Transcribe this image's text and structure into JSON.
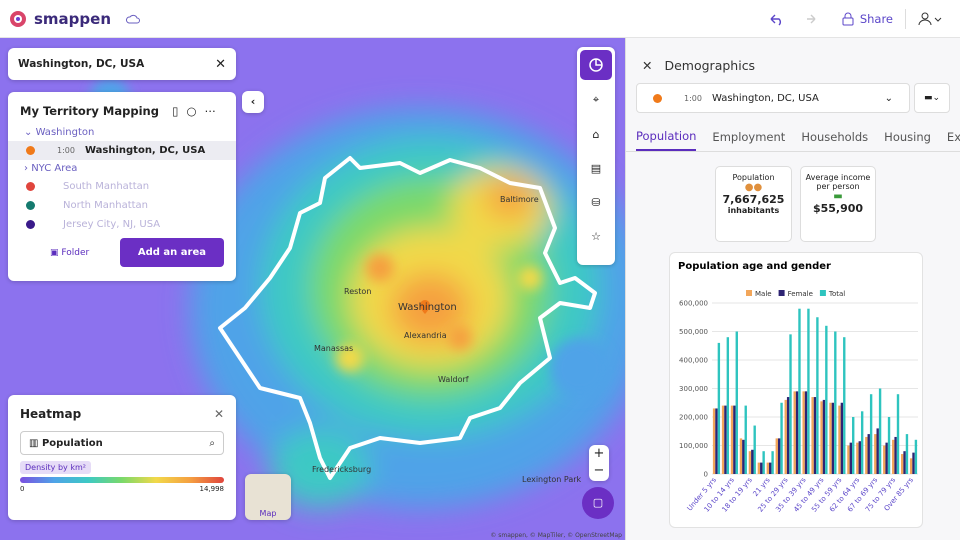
{
  "header": {
    "brand": "smappen",
    "share": "Share"
  },
  "search": {
    "query": "Washington, DC, USA"
  },
  "territory": {
    "title": "My Territory Mapping",
    "groups": [
      {
        "name": "Washington",
        "areas": [
          {
            "time": "1:00",
            "name": "Washington, DC, USA"
          }
        ]
      },
      {
        "name": "NYC Area",
        "areas": [
          {
            "name": "South Manhattan"
          },
          {
            "name": "North Manhattan"
          },
          {
            "name": "Jersey City, NJ, USA"
          }
        ]
      }
    ],
    "folder": "Folder",
    "add": "Add an area"
  },
  "heatmap": {
    "title": "Heatmap",
    "layer": "Population",
    "legend": "Density by km²",
    "min": "0",
    "max": "14,998"
  },
  "map": {
    "labels": [
      "Washington",
      "Baltimore",
      "Alexandria",
      "Reston",
      "Manassas",
      "Waldorf",
      "Fredericksburg",
      "Lexington Park"
    ],
    "toggle": "Map",
    "attribution": "© smappen, © MapTiler, © OpenStreetMap"
  },
  "demographics": {
    "title": "Demographics",
    "area_time": "1:00",
    "area": "Washington, DC, USA",
    "tabs": [
      "Population",
      "Employment",
      "Households",
      "Housing",
      "Export"
    ],
    "cards": [
      {
        "label": "Population",
        "value": "7,667,625",
        "unit": "inhabitants"
      },
      {
        "label": "Average income per person",
        "value": "$55,900"
      }
    ]
  },
  "chart_data": {
    "type": "bar",
    "title": "Population age and gender",
    "categories": [
      "Under 5 yrs",
      null,
      "10 to 14 yrs",
      null,
      "18 to 19 yrs",
      null,
      "21 yrs",
      null,
      "25 to 29 yrs",
      null,
      "35 to 39 yrs",
      null,
      "45 to 49 yrs",
      null,
      "55 to 59 yrs",
      null,
      "62 to 64 yrs",
      null,
      "67 to 69 yrs",
      null,
      "75 to 79 yrs",
      null,
      "Over 85 yrs"
    ],
    "series": [
      {
        "name": "Male",
        "color": "#f2a65a",
        "values": [
          230000,
          240000,
          240000,
          125000,
          80000,
          40000,
          40000,
          125000,
          260000,
          290000,
          290000,
          270000,
          255000,
          250000,
          240000,
          100000,
          110000,
          130000,
          140000,
          100000,
          120000,
          70000,
          55000
        ]
      },
      {
        "name": "Female",
        "color": "#2e2473",
        "values": [
          230000,
          240000,
          240000,
          120000,
          85000,
          40000,
          40000,
          125000,
          270000,
          290000,
          290000,
          270000,
          260000,
          250000,
          250000,
          110000,
          115000,
          140000,
          160000,
          110000,
          130000,
          80000,
          75000
        ]
      },
      {
        "name": "Total",
        "color": "#2ec4bf",
        "values": [
          460000,
          480000,
          500000,
          240000,
          170000,
          80000,
          80000,
          250000,
          490000,
          580000,
          580000,
          550000,
          520000,
          500000,
          480000,
          200000,
          220000,
          280000,
          300000,
          200000,
          280000,
          140000,
          120000
        ]
      }
    ],
    "ylim": [
      0,
      600000
    ],
    "yticks": [
      0,
      {
        "value": 100000,
        "label": "100,000"
      },
      {
        "value": 200000,
        "label": "200,000"
      },
      {
        "value": 300000,
        "label": "300,000"
      },
      {
        "value": 400000,
        "label": "400,000"
      },
      {
        "value": 500000,
        "label": "500,000"
      },
      {
        "value": 600000,
        "label": "600,000"
      }
    ],
    "grid": true
  }
}
